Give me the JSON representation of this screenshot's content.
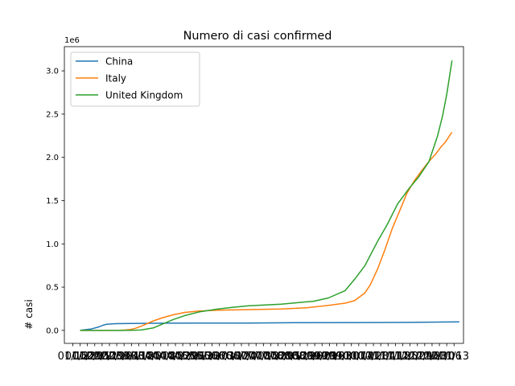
{
  "chart_data": {
    "type": "line",
    "title": "Numero di casi confirmed",
    "xlabel": "",
    "ylabel": "# casi",
    "y_offset_label": "1e6",
    "ylim": [
      -150000,
      3280000
    ],
    "yticks": [
      0,
      500000,
      1000000,
      1500000,
      2000000,
      2500000,
      3000000
    ],
    "ytick_labels": [
      "0.0",
      "0.5",
      "1.0",
      "1.5",
      "2.0",
      "2.5",
      "3.0"
    ],
    "xlim": [
      "2020-01-07",
      "2021-01-22"
    ],
    "xtick_dates": [
      "2020-01-15",
      "2020-01-22",
      "2020-01-29",
      "2020-02-05",
      "2020-02-12",
      "2020-02-19",
      "2020-02-26",
      "2020-03-04",
      "2020-03-11",
      "2020-03-18",
      "2020-03-25",
      "2020-04-01",
      "2020-04-08",
      "2020-04-15",
      "2020-04-22",
      "2020-04-29",
      "2020-05-06",
      "2020-05-13",
      "2020-05-20",
      "2020-05-27",
      "2020-06-03",
      "2020-06-10",
      "2020-06-17",
      "2020-06-24",
      "2020-07-01",
      "2020-07-08",
      "2020-07-15",
      "2020-07-22",
      "2020-07-29",
      "2020-08-05",
      "2020-08-12",
      "2020-08-19",
      "2020-08-26",
      "2020-09-02",
      "2020-09-09",
      "2020-09-16",
      "2020-09-23",
      "2020-09-30",
      "2020-10-07",
      "2020-10-14",
      "2020-10-21",
      "2020-10-28",
      "2020-11-04",
      "2020-11-11",
      "2020-11-18",
      "2020-11-25",
      "2020-12-02",
      "2020-12-09",
      "2020-12-16",
      "2020-12-23",
      "2020-12-30",
      "2021-01-06",
      "2021-01-13"
    ],
    "xtick_labels": [
      "01/15",
      "01/22",
      "01/29",
      "02/05",
      "02/12",
      "02/19",
      "02/26",
      "03/04",
      "03/11",
      "03/18",
      "03/25",
      "04/01",
      "04/08",
      "04/15",
      "04/22",
      "04/29",
      "05/06",
      "05/13",
      "05/20",
      "05/27",
      "06/03",
      "06/10",
      "06/17",
      "06/24",
      "07/01",
      "07/08",
      "07/15",
      "07/22",
      "07/29",
      "08/05",
      "08/12",
      "08/19",
      "08/26",
      "09/02",
      "09/09",
      "09/16",
      "09/23",
      "09/30",
      "10/07",
      "10/14",
      "10/21",
      "10/28",
      "11/04",
      "11/11",
      "11/18",
      "11/25",
      "12/02",
      "12/09",
      "12/16",
      "12/23",
      "12/30",
      "01/06",
      "01/13"
    ],
    "grid": false,
    "legend_position": "upper-left",
    "series": [
      {
        "name": "China",
        "color": "#1f77b4",
        "points": [
          [
            "2020-01-22",
            548
          ],
          [
            "2020-02-01",
            14380
          ],
          [
            "2020-02-08",
            37120
          ],
          [
            "2020-02-13",
            60330
          ],
          [
            "2020-02-16",
            70500
          ],
          [
            "2020-02-25",
            77800
          ],
          [
            "2020-03-10",
            80900
          ],
          [
            "2020-04-10",
            82900
          ],
          [
            "2020-05-15",
            84000
          ],
          [
            "2020-06-30",
            84800
          ],
          [
            "2020-08-15",
            89000
          ],
          [
            "2020-10-15",
            91000
          ],
          [
            "2020-12-01",
            92500
          ],
          [
            "2021-01-18",
            98000
          ]
        ]
      },
      {
        "name": "Italy",
        "color": "#ff7f0e",
        "points": [
          [
            "2020-01-22",
            0
          ],
          [
            "2020-02-20",
            3
          ],
          [
            "2020-02-28",
            890
          ],
          [
            "2020-03-05",
            3858
          ],
          [
            "2020-03-10",
            10149
          ],
          [
            "2020-03-15",
            24747
          ],
          [
            "2020-03-20",
            47021
          ],
          [
            "2020-03-25",
            74386
          ],
          [
            "2020-04-01",
            110574
          ],
          [
            "2020-04-10",
            147577
          ],
          [
            "2020-04-20",
            181228
          ],
          [
            "2020-05-01",
            207428
          ],
          [
            "2020-05-15",
            223885
          ],
          [
            "2020-06-01",
            233197
          ],
          [
            "2020-07-01",
            240760
          ],
          [
            "2020-08-01",
            248070
          ],
          [
            "2020-08-25",
            261174
          ],
          [
            "2020-09-15",
            289990
          ],
          [
            "2020-10-01",
            314861
          ],
          [
            "2020-10-10",
            343770
          ],
          [
            "2020-10-20",
            434449
          ],
          [
            "2020-10-25",
            525782
          ],
          [
            "2020-11-01",
            709335
          ],
          [
            "2020-11-08",
            935104
          ],
          [
            "2020-11-15",
            1178529
          ],
          [
            "2020-11-22",
            1380531
          ],
          [
            "2020-11-29",
            1585178
          ],
          [
            "2020-12-06",
            1728878
          ],
          [
            "2020-12-13",
            1843712
          ],
          [
            "2020-12-20",
            1953185
          ],
          [
            "2020-12-27",
            2047696
          ],
          [
            "2021-01-01",
            2129376
          ],
          [
            "2021-01-05",
            2181619
          ],
          [
            "2021-01-09",
            2257866
          ],
          [
            "2021-01-11",
            2289021
          ]
        ]
      },
      {
        "name": "United Kingdom",
        "color": "#2ca02c",
        "points": [
          [
            "2020-01-22",
            0
          ],
          [
            "2020-03-01",
            36
          ],
          [
            "2020-03-10",
            384
          ],
          [
            "2020-03-20",
            4014
          ],
          [
            "2020-04-01",
            29474
          ],
          [
            "2020-04-10",
            74605
          ],
          [
            "2020-04-20",
            125856
          ],
          [
            "2020-05-01",
            171253
          ],
          [
            "2020-05-15",
            214350
          ],
          [
            "2020-06-01",
            246406
          ],
          [
            "2020-06-15",
            265227
          ],
          [
            "2020-07-01",
            283757
          ],
          [
            "2020-08-01",
            303181
          ],
          [
            "2020-09-01",
            337168
          ],
          [
            "2020-09-15",
            375000
          ],
          [
            "2020-10-01",
            460000
          ],
          [
            "2020-10-10",
            590000
          ],
          [
            "2020-10-20",
            750000
          ],
          [
            "2020-11-01",
            1030000
          ],
          [
            "2020-11-10",
            1220000
          ],
          [
            "2020-11-20",
            1460000
          ],
          [
            "2020-12-01",
            1640000
          ],
          [
            "2020-12-10",
            1770000
          ],
          [
            "2020-12-20",
            1950000
          ],
          [
            "2020-12-28",
            2240000
          ],
          [
            "2021-01-02",
            2480000
          ],
          [
            "2021-01-06",
            2730000
          ],
          [
            "2021-01-11",
            3120000
          ]
        ]
      }
    ]
  }
}
